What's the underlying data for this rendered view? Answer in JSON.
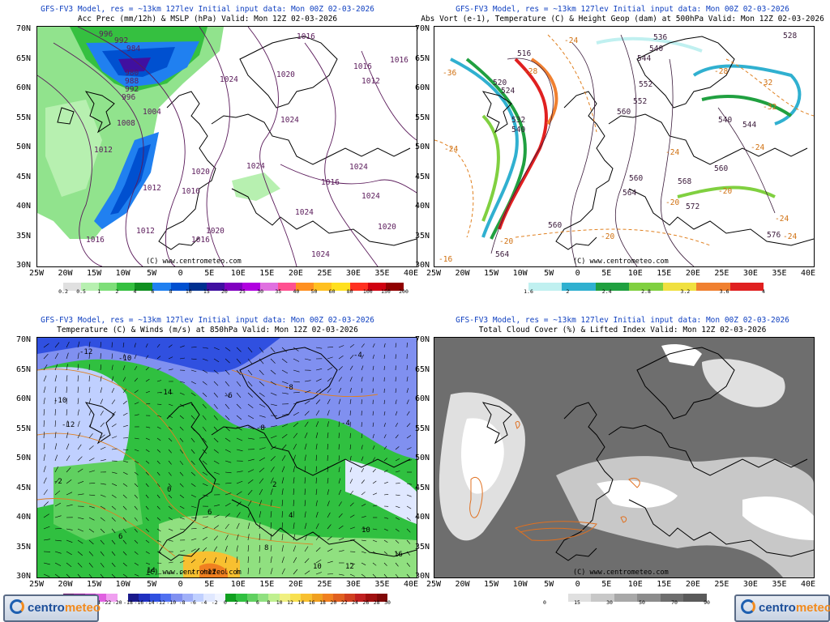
{
  "panels": [
    {
      "model_line": "GFS-FV3 Model, res = ~13km 127lev   Initial input data: Mon 00Z 02-03-2026",
      "title_line": "Acc Prec (mm/12h) & MSLP (hPa)  Valid: Mon 12Z 02-03-2026",
      "credit": "(C) www.centrometeo.com",
      "isobar_labels": [
        "996",
        "992",
        "984",
        "980",
        "988",
        "992",
        "996",
        "1004",
        "1008",
        "1012",
        "1016",
        "1020",
        "1024",
        "1024",
        "1016",
        "1012",
        "1016",
        "1016",
        "1016",
        "1020",
        "1012",
        "1024",
        "1024",
        "1024",
        "1016",
        "1012",
        "1020",
        "1020",
        "1016",
        "1024",
        "1024"
      ],
      "scale_ticks": [
        "0.2",
        "0.5",
        "1",
        "2",
        "4",
        "6",
        "8",
        "10",
        "15",
        "20",
        "25",
        "30",
        "35",
        "40",
        "50",
        "60",
        "80",
        "100",
        "150",
        "200"
      ],
      "scale_colors": [
        "#e0e0e0",
        "#b7f0b0",
        "#7ede79",
        "#35c040",
        "#109020",
        "#2080f0",
        "#0050d0",
        "#003090",
        "#4010a0",
        "#8000c0",
        "#b000e0",
        "#e070e0",
        "#ff5090",
        "#ff9020",
        "#ffc020",
        "#ffe020",
        "#ff3020",
        "#d00010",
        "#900000"
      ]
    },
    {
      "model_line": "GFS-FV3 Model, res = ~13km 127lev   Initial input data: Mon 00Z 02-03-2026",
      "title_line": "Abs Vort (e-1), Temperature (C) & Height Geop (dam) at 500hPa  Valid: Mon 12Z 02-03-2026",
      "credit": "(C) www.centrometeo.com",
      "height_labels": [
        "536",
        "528",
        "540",
        "544",
        "552",
        "516",
        "520",
        "524",
        "532",
        "540",
        "560",
        "564",
        "568",
        "572",
        "560",
        "564",
        "576",
        "560",
        "552",
        "544",
        "540",
        "560"
      ],
      "temp_labels": [
        "-24",
        "-36",
        "-28",
        "-28",
        "-32",
        "-32",
        "-24",
        "-24",
        "-20",
        "-24",
        "-20",
        "-24",
        "-16",
        "-20",
        "-20",
        "-24"
      ],
      "scale_ticks": [
        "1.6",
        "2",
        "2.4",
        "2.8",
        "3.2",
        "3.6",
        "4"
      ],
      "scale_colors": [
        "#c0f0f0",
        "#30b0d0",
        "#20a040",
        "#80d040",
        "#f0e040",
        "#f08030",
        "#e02020"
      ]
    },
    {
      "model_line": "GFS-FV3 Model, res = ~13km 127lev   Initial input data: Mon 00Z 02-03-2026",
      "title_line": "Temperature (C) & Winds (m/s) at 850hPa  Valid: Mon 12Z 02-03-2026",
      "credit": "(C) www.centrometeo.com",
      "isotherm_labels": [
        "-12",
        "-10",
        "-14",
        "-6",
        "-8",
        "-4",
        "-10",
        "-12",
        "-8",
        "-4",
        "-2",
        "0",
        "2",
        "4",
        "6",
        "8",
        "10",
        "12",
        "14",
        "16",
        "6",
        "10",
        "12"
      ],
      "scale_ticks": [
        "-30",
        "-28",
        "-26",
        "-24",
        "-22",
        "-20",
        "-18",
        "-16",
        "-14",
        "-12",
        "-10",
        "-8",
        "-6",
        "-4",
        "-2",
        "0",
        "2",
        "4",
        "6",
        "8",
        "10",
        "12",
        "14",
        "16",
        "18",
        "20",
        "22",
        "24",
        "26",
        "28",
        "30"
      ],
      "scale_colors": [
        "#5a005a",
        "#8c008c",
        "#c020c0",
        "#e060e0",
        "#f0a0f0",
        "#ffffff",
        "#1a1a8c",
        "#2030c0",
        "#3050e0",
        "#5070f0",
        "#8090f0",
        "#a0b0f8",
        "#c0d0ff",
        "#e0e8ff",
        "#f0f4ff",
        "#10a020",
        "#30c040",
        "#60d060",
        "#90e080",
        "#c0f090",
        "#f0f080",
        "#f8e050",
        "#f8c030",
        "#f0a020",
        "#f08020",
        "#e06020",
        "#d04020",
        "#c02020",
        "#a01010",
        "#800808"
      ]
    },
    {
      "model_line": "GFS-FV3 Model, res = ~13km 127lev   Initial input data: Mon 00Z 02-03-2026",
      "title_line": "Total Cloud Cover (%) & Lifted Index  Valid: Mon 12Z 02-03-2026",
      "credit": "(C) www.centrometeo.com",
      "scale_ticks": [
        "0",
        "15",
        "30",
        "50",
        "70",
        "90"
      ],
      "scale_colors": [
        "#ffffff",
        "#e0e0e0",
        "#c8c8c8",
        "#a8a8a8",
        "#8c8c8c",
        "#6e6e6e",
        "#5a5a5a"
      ]
    }
  ],
  "lat_labels": [
    "70N",
    "65N",
    "60N",
    "55N",
    "50N",
    "45N",
    "40N",
    "35N",
    "30N"
  ],
  "lon_labels": [
    "25W",
    "20W",
    "15W",
    "10W",
    "5W",
    "0",
    "5E",
    "10E",
    "15E",
    "20E",
    "25E",
    "30E",
    "35E",
    "40E"
  ],
  "logo": {
    "part1": "centro",
    "part2": "meteo"
  }
}
